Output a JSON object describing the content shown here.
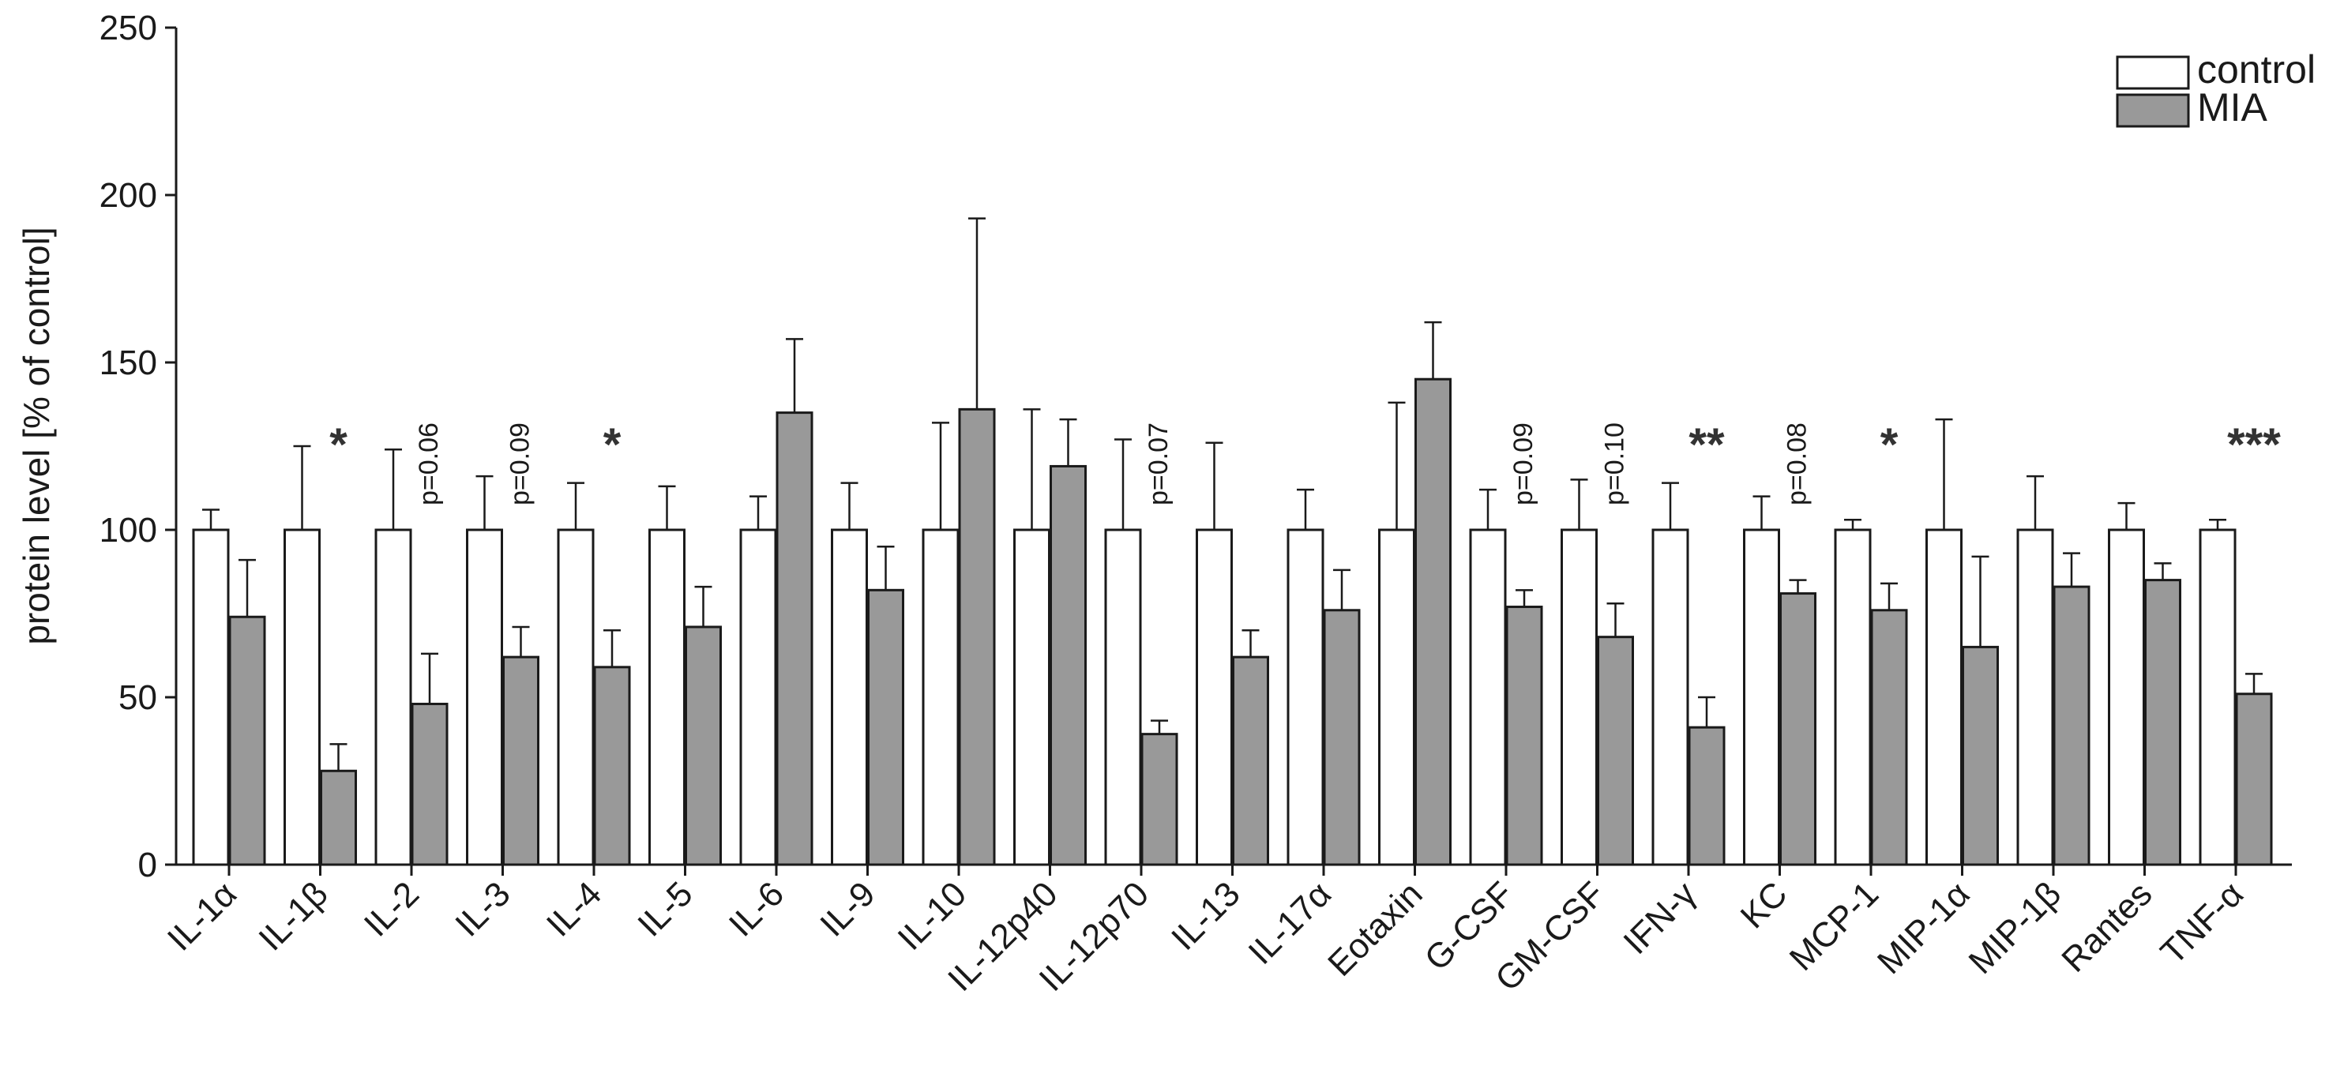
{
  "chart_data": {
    "type": "bar",
    "ylabel": "protein level [% of control]",
    "ylim": [
      0,
      250
    ],
    "yticks": [
      0,
      50,
      100,
      150,
      200,
      250
    ],
    "legend_position": "top-right",
    "colors": {
      "control": "#ffffff",
      "MIA": "#999999",
      "stroke": "#1a1a1a"
    },
    "categories": [
      "IL-1α",
      "IL-1β",
      "IL-2",
      "IL-3",
      "IL-4",
      "IL-5",
      "IL-6",
      "IL-9",
      "IL-10",
      "IL-12p40",
      "IL-12p70",
      "IL-13",
      "IL-17α",
      "Eotaxin",
      "G-CSF",
      "GM-CSF",
      "IFN-γ",
      "KC",
      "MCP-1",
      "MIP-1α",
      "MIP-1β",
      "Rantes",
      "TNF-α"
    ],
    "series": [
      {
        "name": "control",
        "values": [
          100,
          100,
          100,
          100,
          100,
          100,
          100,
          100,
          100,
          100,
          100,
          100,
          100,
          100,
          100,
          100,
          100,
          100,
          100,
          100,
          100,
          100,
          100
        ],
        "errors": [
          6,
          25,
          24,
          16,
          14,
          13,
          10,
          14,
          32,
          36,
          27,
          26,
          12,
          38,
          12,
          15,
          14,
          10,
          3,
          33,
          16,
          8,
          3
        ]
      },
      {
        "name": "MIA",
        "values": [
          74,
          28,
          48,
          62,
          59,
          71,
          135,
          82,
          136,
          119,
          39,
          62,
          76,
          145,
          77,
          68,
          41,
          81,
          76,
          65,
          83,
          85,
          51
        ],
        "errors": [
          17,
          8,
          15,
          9,
          11,
          12,
          22,
          13,
          57,
          14,
          4,
          8,
          12,
          17,
          5,
          10,
          9,
          4,
          8,
          27,
          10,
          5,
          6
        ]
      }
    ],
    "annotations": [
      {
        "category_index": 1,
        "text": "*",
        "kind": "star"
      },
      {
        "category_index": 2,
        "text": "p=0.06",
        "kind": "p"
      },
      {
        "category_index": 3,
        "text": "p=0.09",
        "kind": "p"
      },
      {
        "category_index": 4,
        "text": "*",
        "kind": "star"
      },
      {
        "category_index": 10,
        "text": "p=0.07",
        "kind": "p"
      },
      {
        "category_index": 14,
        "text": "p=0.09",
        "kind": "p"
      },
      {
        "category_index": 15,
        "text": "p=0.10",
        "kind": "p"
      },
      {
        "category_index": 16,
        "text": "**",
        "kind": "star"
      },
      {
        "category_index": 17,
        "text": "p=0.08",
        "kind": "p"
      },
      {
        "category_index": 18,
        "text": "*",
        "kind": "star"
      },
      {
        "category_index": 22,
        "text": "***",
        "kind": "star"
      }
    ]
  }
}
